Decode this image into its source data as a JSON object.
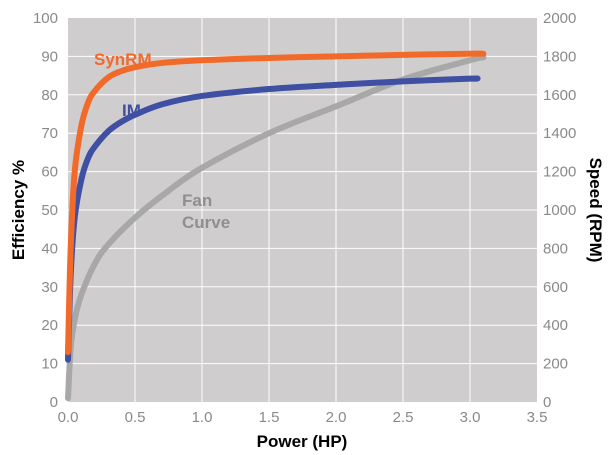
{
  "chart_data": {
    "type": "line",
    "xlabel": "Power (HP)",
    "ylabel_left": "Efficiency %",
    "ylabel_right": "Speed (RPM)",
    "xlim": [
      0,
      3.5
    ],
    "ylim_left": [
      0,
      100
    ],
    "ylim_right": [
      0,
      2000
    ],
    "x_ticks": [
      "0.0",
      "0.5",
      "1.0",
      "1.5",
      "2.0",
      "2.5",
      "3.0",
      "3.5"
    ],
    "y_left_ticks": [
      "0",
      "10",
      "20",
      "30",
      "40",
      "50",
      "60",
      "70",
      "80",
      "90",
      "100"
    ],
    "y_right_ticks": [
      "0",
      "200",
      "400",
      "600",
      "800",
      "1000",
      "1200",
      "1400",
      "1600",
      "1800",
      "2000"
    ],
    "grid": true,
    "plot_background": "#cfcdce",
    "grid_color": "#ffffff",
    "series": [
      {
        "name": "SynRM",
        "axis": "left",
        "color": "#f26a2a",
        "x": [
          0.0,
          0.02,
          0.05,
          0.1,
          0.15,
          0.2,
          0.3,
          0.4,
          0.5,
          0.7,
          1.0,
          1.5,
          2.0,
          2.5,
          3.0,
          3.1
        ],
        "y": [
          13,
          40,
          60,
          72,
          78,
          81,
          84.5,
          86.2,
          87.2,
          88.3,
          89.0,
          89.6,
          90.0,
          90.4,
          90.7,
          90.7
        ]
      },
      {
        "name": "IM",
        "axis": "left",
        "color": "#3f4fa3",
        "x": [
          0.0,
          0.02,
          0.05,
          0.1,
          0.15,
          0.2,
          0.3,
          0.4,
          0.5,
          0.7,
          1.0,
          1.5,
          2.0,
          2.5,
          3.0,
          3.05
        ],
        "y": [
          11,
          33,
          48,
          58,
          63.5,
          66.5,
          70.5,
          73,
          74.8,
          77.5,
          79.7,
          81.5,
          82.6,
          83.5,
          84.2,
          84.2
        ]
      },
      {
        "name": "Fan Curve",
        "axis": "right",
        "color": "#a8a8a8",
        "x": [
          0.0,
          0.02,
          0.05,
          0.1,
          0.2,
          0.3,
          0.5,
          0.75,
          1.0,
          1.5,
          2.0,
          2.5,
          3.0,
          3.1
        ],
        "y": [
          20,
          280,
          430,
          560,
          720,
          820,
          960,
          1100,
          1220,
          1400,
          1540,
          1680,
          1780,
          1795
        ]
      }
    ]
  },
  "labels": {
    "synrm": "SynRM",
    "im": "IM",
    "fan_line1": "Fan",
    "fan_line2": "Curve"
  }
}
